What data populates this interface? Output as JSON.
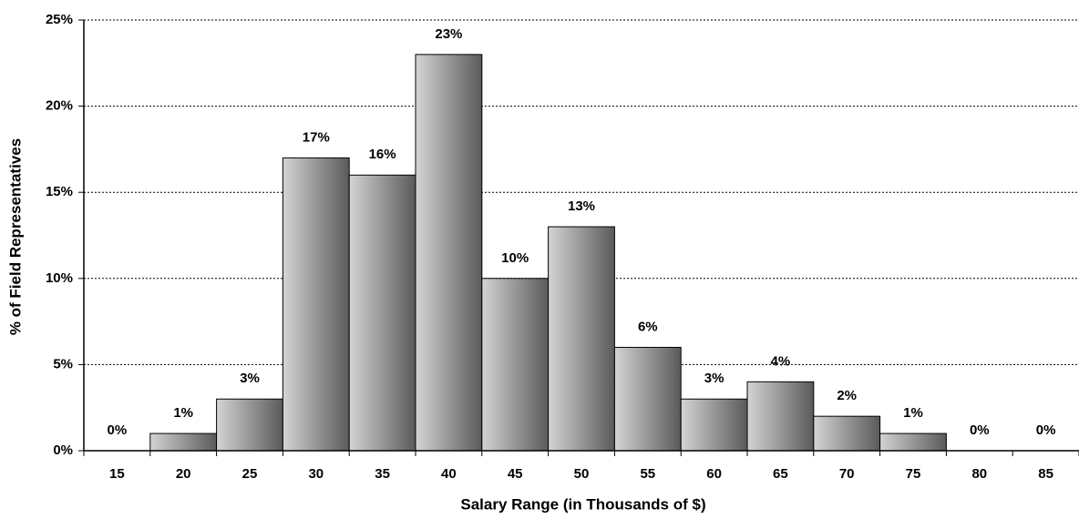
{
  "chart_data": {
    "type": "bar",
    "xlabel": "Salary Range (in Thousands of $)",
    "ylabel": "% of Field Representatives",
    "categories": [
      "15",
      "20",
      "25",
      "30",
      "35",
      "40",
      "45",
      "50",
      "55",
      "60",
      "65",
      "70",
      "75",
      "80",
      "85"
    ],
    "values": [
      0,
      1,
      3,
      17,
      16,
      23,
      10,
      13,
      6,
      3,
      4,
      2,
      1,
      0,
      0
    ],
    "value_labels": [
      "0%",
      "1%",
      "3%",
      "17%",
      "16%",
      "23%",
      "10%",
      "13%",
      "6%",
      "3%",
      "4%",
      "2%",
      "1%",
      "0%",
      "0%"
    ],
    "color": "#8c8c8c",
    "ylim": [
      0,
      25
    ],
    "yticks": [
      {
        "value": 0,
        "label": "0%"
      },
      {
        "value": 5,
        "label": "5%"
      },
      {
        "value": 10,
        "label": "10%"
      },
      {
        "value": 15,
        "label": "15%"
      },
      {
        "value": 20,
        "label": "20%"
      },
      {
        "value": 25,
        "label": "25%"
      }
    ],
    "grid": true
  }
}
